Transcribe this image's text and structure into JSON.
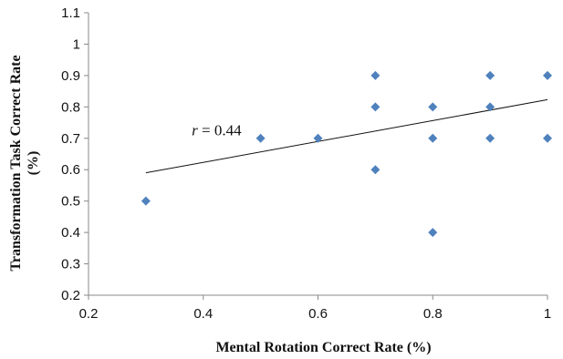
{
  "chart_data": {
    "type": "scatter",
    "xlabel": "Mental Rotation Correct Rate (%)",
    "ylabel_line1": "Transformation Task Correct Rate",
    "ylabel_line2": "(%)",
    "xlim": [
      0.2,
      1.0
    ],
    "ylim": [
      0.2,
      1.1
    ],
    "xticks": [
      0.2,
      0.4,
      0.6,
      0.8,
      1.0
    ],
    "xtick_labels": [
      "0.2",
      "0.4",
      "0.6",
      "0.8",
      "1"
    ],
    "yticks": [
      0.2,
      0.3,
      0.4,
      0.5,
      0.6,
      0.7,
      0.8,
      0.9,
      1.0,
      1.1
    ],
    "ytick_labels": [
      "0.2",
      "0.3",
      "0.4",
      "0.5",
      "0.6",
      "0.7",
      "0.8",
      "0.9",
      "1",
      "1.1"
    ],
    "grid": false,
    "marker_color": "#4f81bd",
    "points": [
      {
        "x": 0.3,
        "y": 0.5
      },
      {
        "x": 0.5,
        "y": 0.7
      },
      {
        "x": 0.6,
        "y": 0.7
      },
      {
        "x": 0.7,
        "y": 0.9
      },
      {
        "x": 0.7,
        "y": 0.8
      },
      {
        "x": 0.7,
        "y": 0.6
      },
      {
        "x": 0.8,
        "y": 0.8
      },
      {
        "x": 0.8,
        "y": 0.7
      },
      {
        "x": 0.8,
        "y": 0.4
      },
      {
        "x": 0.9,
        "y": 0.9
      },
      {
        "x": 0.9,
        "y": 0.8
      },
      {
        "x": 0.9,
        "y": 0.7
      },
      {
        "x": 1.0,
        "y": 0.9
      },
      {
        "x": 1.0,
        "y": 0.7
      }
    ],
    "trendline": {
      "x1": 0.3,
      "y1": 0.59,
      "x2": 1.0,
      "y2": 0.823
    },
    "annotation": {
      "r_symbol": "r",
      "r_text": " = 0.44",
      "x": 0.38,
      "y": 0.71
    }
  }
}
